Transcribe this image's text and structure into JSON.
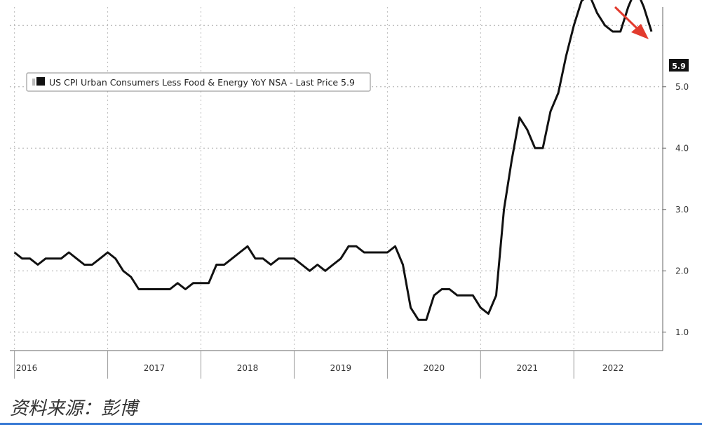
{
  "chart_data": {
    "type": "line",
    "title": "",
    "xlabel": "",
    "ylabel": "",
    "xlim": [
      "2016-01",
      "2022-11"
    ],
    "ylim": [
      0.7,
      6.3
    ],
    "grid": true,
    "y_ticks": [
      1.0,
      2.0,
      3.0,
      4.0,
      5.0
    ],
    "y_tick_labels": [
      "1.0",
      "2.0",
      "3.0",
      "4.0",
      "5.0"
    ],
    "x_tick_labels": [
      "2016",
      "2017",
      "2018",
      "2019",
      "2020",
      "2021",
      "2022"
    ],
    "legend": {
      "position": "top-left",
      "entries": [
        "US CPI Urban Consumers Less Food & Energy YoY NSA - Last Price 5.9"
      ]
    },
    "last_price_label": "5.9",
    "annotation": "red arrow pointing down-right near recent peak",
    "series": [
      {
        "name": "US CPI Urban Consumers Less Food & Energy YoY NSA",
        "color": "#111111",
        "x": [
          "2016-01",
          "2016-02",
          "2016-03",
          "2016-04",
          "2016-05",
          "2016-06",
          "2016-07",
          "2016-08",
          "2016-09",
          "2016-10",
          "2016-11",
          "2016-12",
          "2017-01",
          "2017-02",
          "2017-03",
          "2017-04",
          "2017-05",
          "2017-06",
          "2017-07",
          "2017-08",
          "2017-09",
          "2017-10",
          "2017-11",
          "2017-12",
          "2018-01",
          "2018-02",
          "2018-03",
          "2018-04",
          "2018-05",
          "2018-06",
          "2018-07",
          "2018-08",
          "2018-09",
          "2018-10",
          "2018-11",
          "2018-12",
          "2019-01",
          "2019-02",
          "2019-03",
          "2019-04",
          "2019-05",
          "2019-06",
          "2019-07",
          "2019-08",
          "2019-09",
          "2019-10",
          "2019-11",
          "2019-12",
          "2020-01",
          "2020-02",
          "2020-03",
          "2020-04",
          "2020-05",
          "2020-06",
          "2020-07",
          "2020-08",
          "2020-09",
          "2020-10",
          "2020-11",
          "2020-12",
          "2021-01",
          "2021-02",
          "2021-03",
          "2021-04",
          "2021-05",
          "2021-06",
          "2021-07",
          "2021-08",
          "2021-09",
          "2021-10",
          "2021-11",
          "2021-12",
          "2022-01",
          "2022-02",
          "2022-03",
          "2022-04",
          "2022-05",
          "2022-06",
          "2022-07",
          "2022-08",
          "2022-09",
          "2022-10",
          "2022-11"
        ],
        "values": [
          2.3,
          2.2,
          2.2,
          2.1,
          2.2,
          2.2,
          2.2,
          2.3,
          2.2,
          2.1,
          2.1,
          2.2,
          2.3,
          2.2,
          2.0,
          1.9,
          1.7,
          1.7,
          1.7,
          1.7,
          1.7,
          1.8,
          1.7,
          1.8,
          1.8,
          1.8,
          2.1,
          2.1,
          2.2,
          2.3,
          2.4,
          2.2,
          2.2,
          2.1,
          2.2,
          2.2,
          2.2,
          2.1,
          2.0,
          2.1,
          2.0,
          2.1,
          2.2,
          2.4,
          2.4,
          2.3,
          2.3,
          2.3,
          2.3,
          2.4,
          2.1,
          1.4,
          1.2,
          1.2,
          1.6,
          1.7,
          1.7,
          1.6,
          1.6,
          1.6,
          1.4,
          1.3,
          1.6,
          3.0,
          3.8,
          4.5,
          4.3,
          4.0,
          4.0,
          4.6,
          4.9,
          5.5,
          6.0,
          6.4,
          6.5,
          6.2,
          6.0,
          5.9,
          5.9,
          6.3,
          6.6,
          6.3,
          5.9
        ]
      }
    ]
  },
  "footer": {
    "source_text": "资料来源：彭博"
  }
}
